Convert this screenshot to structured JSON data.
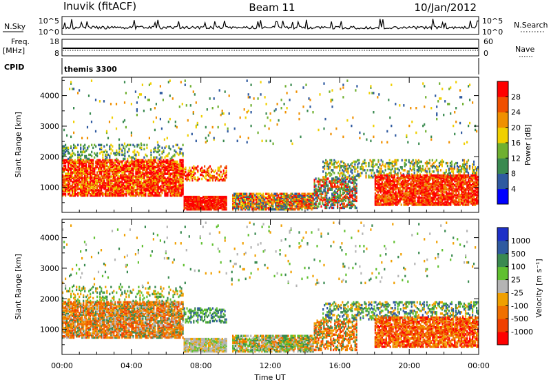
{
  "header": {
    "radar_title": "Inuvik (fitACF)",
    "beam": "Beam 11",
    "date": "10/Jan/2012"
  },
  "panels": {
    "nsky_label": "N.Sky",
    "nsearch_label": "N.Search",
    "nsky_ticks": [
      "10^5",
      "10^0"
    ],
    "nsearch_ticks": [
      "10^5",
      "10^0"
    ],
    "freq_label": "Freq.",
    "freq_unit": "[MHz]",
    "freq_ticks": [
      "18",
      "8"
    ],
    "nave_label": "Nave",
    "nave_ticks": [
      "60",
      "0"
    ],
    "cpid_label": "CPID",
    "cpid_value": "themis 3300"
  },
  "colors": {
    "power_scale": [
      "#0000ff",
      "#2f5aa0",
      "#3a8a50",
      "#6fb030",
      "#f0d000",
      "#f09000",
      "#f05000",
      "#ff0000"
    ],
    "velocity_scale": [
      "#ff0000",
      "#f04000",
      "#f07000",
      "#f0a000",
      "#b4b4b4",
      "#60c030",
      "#3a8a50",
      "#2f5aa0",
      "#1e30c8"
    ]
  },
  "chart_data": [
    {
      "type": "heatmap",
      "parameter": "power",
      "ylabel": "Slant Range [km]",
      "yticks": [
        1000,
        2000,
        3000,
        4000
      ],
      "ylim": [
        180,
        4600
      ],
      "colorbar_label": "Power [dB]",
      "colorbar_ticks": [
        "4",
        "8",
        "12",
        "16",
        "20",
        "24",
        "28"
      ],
      "clim": [
        0,
        32
      ]
    },
    {
      "type": "heatmap",
      "parameter": "velocity",
      "ylabel": "Slant Range [km]",
      "yticks": [
        1000,
        2000,
        3000,
        4000
      ],
      "ylim": [
        180,
        4600
      ],
      "colorbar_label": "Velocity [m s⁻¹]",
      "colorbar_ticks": [
        "-1000",
        "-500",
        "-100",
        "-25",
        "25",
        "100",
        "500",
        "1000"
      ]
    }
  ],
  "xaxis": {
    "label": "Time UT",
    "ticks": [
      "00:00",
      "04:00",
      "08:00",
      "12:00",
      "16:00",
      "20:00",
      "00:00"
    ],
    "range_hours": [
      0,
      24
    ]
  }
}
